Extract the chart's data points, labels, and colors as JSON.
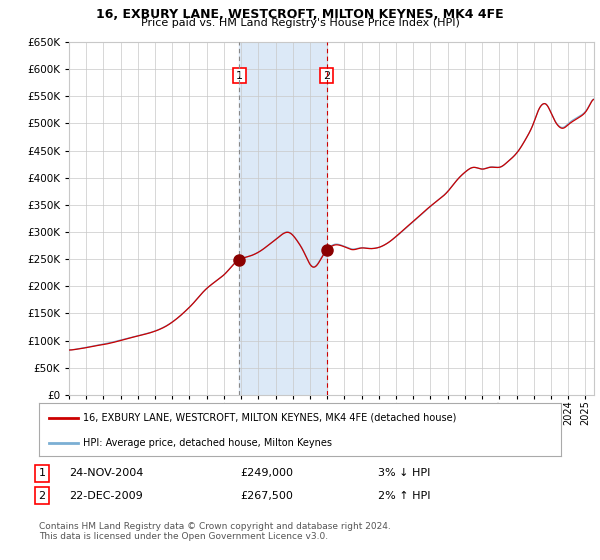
{
  "title": "16, EXBURY LANE, WESTCROFT, MILTON KEYNES, MK4 4FE",
  "subtitle": "Price paid vs. HM Land Registry's House Price Index (HPI)",
  "legend_line1": "16, EXBURY LANE, WESTCROFT, MILTON KEYNES, MK4 4FE (detached house)",
  "legend_line2": "HPI: Average price, detached house, Milton Keynes",
  "transaction1_date": "24-NOV-2004",
  "transaction1_price": "£249,000",
  "transaction1_hpi": "3% ↓ HPI",
  "transaction1_year": 2004.9,
  "transaction1_value": 249000,
  "transaction2_date": "22-DEC-2009",
  "transaction2_price": "£267,500",
  "transaction2_hpi": "2% ↑ HPI",
  "transaction2_year": 2009.97,
  "transaction2_value": 267500,
  "ylabel_values": [
    "£0",
    "£50K",
    "£100K",
    "£150K",
    "£200K",
    "£250K",
    "£300K",
    "£350K",
    "£400K",
    "£450K",
    "£500K",
    "£550K",
    "£600K",
    "£650K"
  ],
  "ylabel_numeric": [
    0,
    50000,
    100000,
    150000,
    200000,
    250000,
    300000,
    350000,
    400000,
    450000,
    500000,
    550000,
    600000,
    650000
  ],
  "hpi_color": "#7bafd4",
  "price_color": "#cc0000",
  "shade_color": "#dce9f7",
  "grid_color": "#c8c8c8",
  "background_color": "#ffffff",
  "marker_color": "#8b0000",
  "vline1_color": "#888888",
  "vline2_color": "#cc0000",
  "footnote": "Contains HM Land Registry data © Crown copyright and database right 2024.\nThis data is licensed under the Open Government Licence v3.0.",
  "xmin": 1995.0,
  "xmax": 2025.5,
  "ymin": 0,
  "ymax": 650000,
  "steps_per_year": 52
}
